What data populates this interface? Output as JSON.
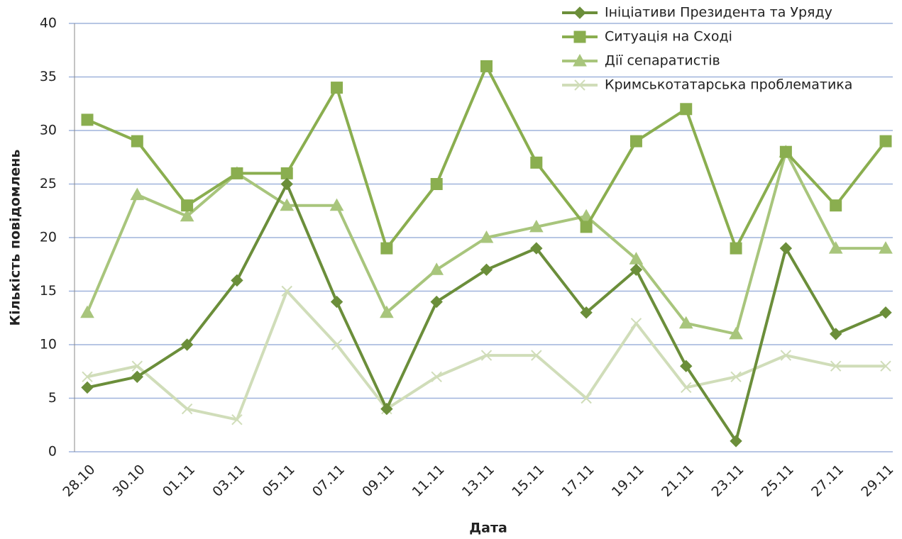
{
  "chart_data": {
    "type": "line",
    "x_label": "Дата",
    "y_label": "Кількість повідомлень",
    "categories": [
      "28.10",
      "30.10",
      "01.11",
      "03.11",
      "05.11",
      "07.11",
      "09.11",
      "11.11",
      "13.11",
      "15.11",
      "17.11",
      "19.11",
      "21.11",
      "23.11",
      "25.11",
      "27.11",
      "29.11"
    ],
    "series": [
      {
        "name": "Ініціативи Президента та Уряду",
        "color": "#6b8e3a",
        "marker": "diamond",
        "values": [
          6,
          7,
          10,
          16,
          25,
          14,
          4,
          14,
          17,
          19,
          13,
          17,
          8,
          1,
          19,
          11,
          13
        ]
      },
      {
        "name": "Ситуація на Сході",
        "color": "#8aae4f",
        "marker": "square",
        "values": [
          31,
          29,
          23,
          26,
          26,
          34,
          19,
          25,
          36,
          27,
          21,
          29,
          32,
          19,
          28,
          23,
          29
        ]
      },
      {
        "name": "Дії сепаратистів",
        "color": "#a8c57c",
        "marker": "triangle",
        "values": [
          13,
          24,
          22,
          26,
          23,
          23,
          13,
          17,
          20,
          21,
          22,
          18,
          12,
          11,
          28,
          19,
          19
        ]
      },
      {
        "name": "Кримськотатарська проблематика",
        "color": "#d0ddb9",
        "marker": "x",
        "values": [
          7,
          8,
          4,
          3,
          15,
          10,
          4,
          7,
          9,
          9,
          5,
          12,
          6,
          7,
          9,
          8,
          8
        ]
      }
    ],
    "ylim": [
      0,
      40
    ],
    "yticks": [
      0,
      5,
      10,
      15,
      20,
      25,
      30,
      35,
      40
    ],
    "grid": true,
    "legend": "top-right"
  }
}
